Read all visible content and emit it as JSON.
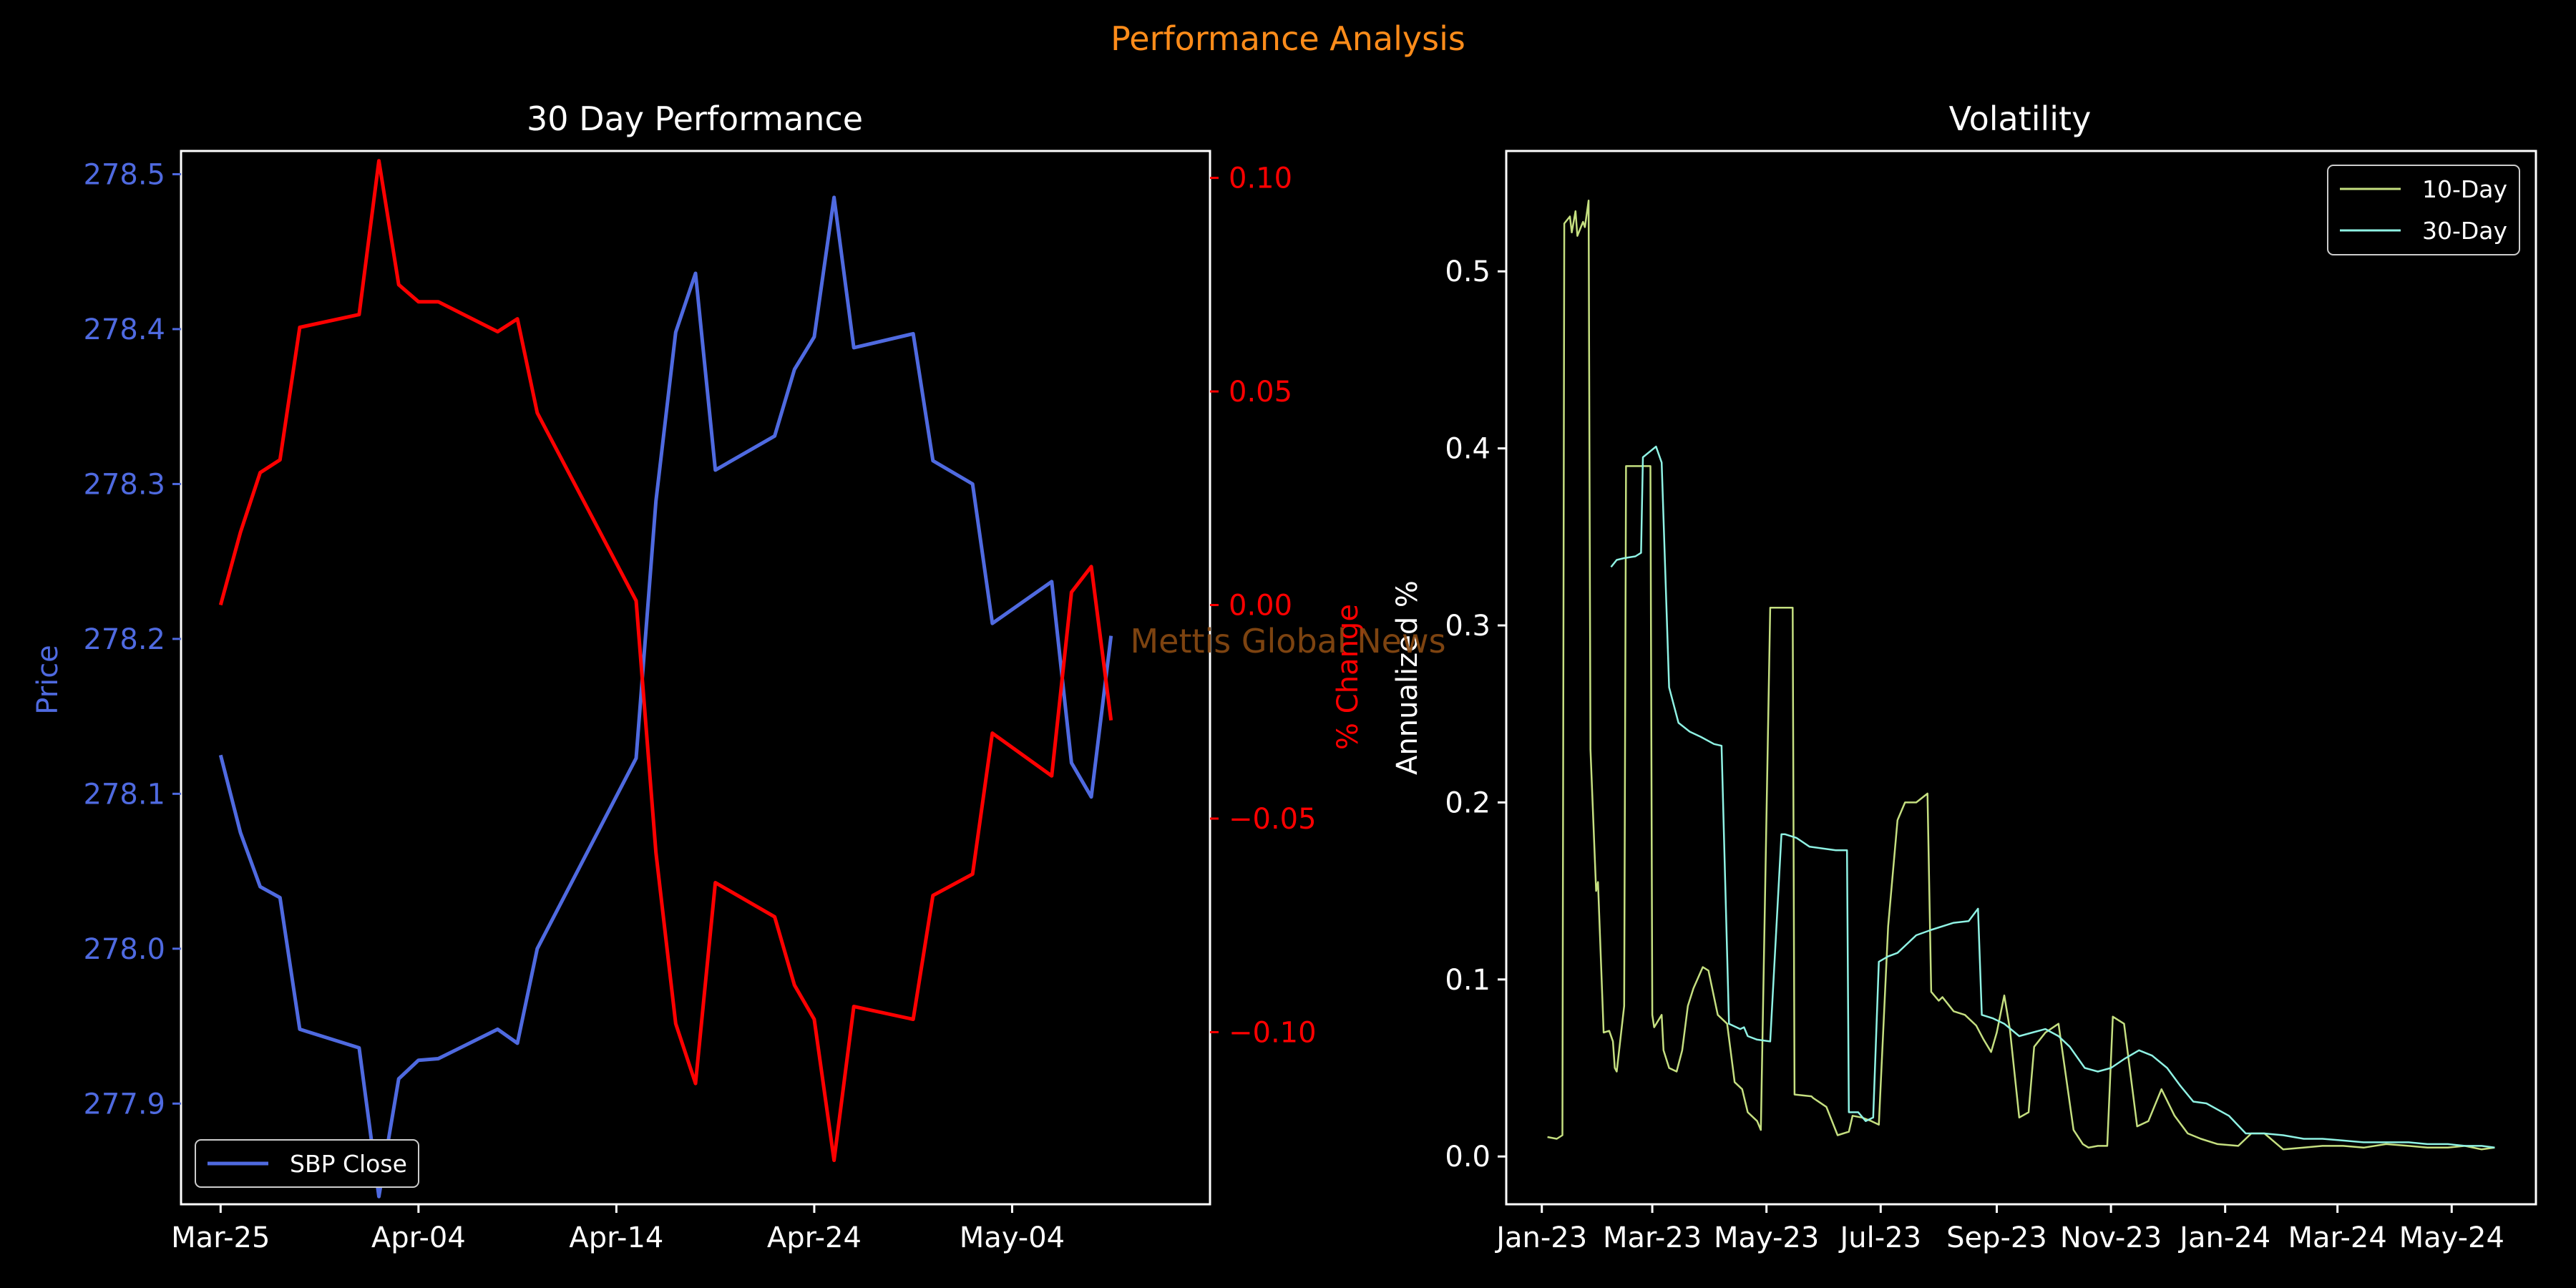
{
  "figure": {
    "title": "Performance Analysis",
    "title_color": "#ff8c1a",
    "watermark": "Mettis Global News",
    "watermark_color": "#8b4a12"
  },
  "colors": {
    "background": "#000000",
    "axis": "#ffffff",
    "price": "#4f6ae0",
    "pct": "#ff0000",
    "vol10": "#c5df80",
    "vol30": "#8ff2e4"
  },
  "chart_data": [
    {
      "type": "line",
      "title": "30 Day Performance",
      "ylabel": "Price",
      "y2label": "% Change",
      "ylim": [
        277.835,
        278.515
      ],
      "y2lim": [
        -0.1403,
        0.1063
      ],
      "yticks": [
        277.9,
        278.0,
        278.1,
        278.2,
        278.3,
        278.4,
        278.5
      ],
      "ytick_labels": [
        "277.9",
        "278.0",
        "278.1",
        "278.2",
        "278.3",
        "278.4",
        "278.5"
      ],
      "y2ticks": [
        -0.1,
        -0.05,
        0.0,
        0.05,
        0.1
      ],
      "y2tick_labels": [
        "−0.10",
        "−0.05",
        "0.00",
        "0.05",
        "0.10"
      ],
      "x_range": [
        "2024-03-23",
        "2024-05-14"
      ],
      "xticks": [
        "2024-03-25",
        "2024-04-04",
        "2024-04-14",
        "2024-04-24",
        "2024-05-04"
      ],
      "xtick_labels": [
        "Mar-25",
        "Apr-04",
        "Apr-14",
        "Apr-24",
        "May-04"
      ],
      "legend": {
        "position": "lower-left",
        "entries": [
          "SBP Close"
        ]
      },
      "series": [
        {
          "name": "SBP Close",
          "axis": "left",
          "x": [
            "2024-03-25",
            "2024-03-26",
            "2024-03-27",
            "2024-03-28",
            "2024-03-29",
            "2024-04-01",
            "2024-04-02",
            "2024-04-03",
            "2024-04-04",
            "2024-04-05",
            "2024-04-08",
            "2024-04-09",
            "2024-04-10",
            "2024-04-15",
            "2024-04-16",
            "2024-04-17",
            "2024-04-18",
            "2024-04-19",
            "2024-04-22",
            "2024-04-23",
            "2024-04-24",
            "2024-04-25",
            "2024-04-26",
            "2024-04-29",
            "2024-04-30",
            "2024-05-02",
            "2024-05-03",
            "2024-05-06",
            "2024-05-07",
            "2024-05-08",
            "2024-05-09"
          ],
          "y": [
            278.125,
            278.075,
            278.04,
            278.033,
            277.948,
            277.936,
            277.84,
            277.916,
            277.928,
            277.929,
            277.948,
            277.939,
            278.0,
            278.123,
            278.289,
            278.398,
            278.436,
            278.309,
            278.331,
            278.374,
            278.395,
            278.485,
            278.388,
            278.397,
            278.315,
            278.3,
            278.21,
            278.237,
            278.12,
            278.098,
            278.202
          ]
        },
        {
          "name": "% Change",
          "axis": "right",
          "x": [
            "2024-03-25",
            "2024-03-26",
            "2024-03-27",
            "2024-03-28",
            "2024-03-29",
            "2024-04-01",
            "2024-04-02",
            "2024-04-03",
            "2024-04-04",
            "2024-04-05",
            "2024-04-08",
            "2024-04-09",
            "2024-04-10",
            "2024-04-15",
            "2024-04-16",
            "2024-04-17",
            "2024-04-18",
            "2024-04-19",
            "2024-04-22",
            "2024-04-23",
            "2024-04-24",
            "2024-04-25",
            "2024-04-26",
            "2024-04-29",
            "2024-04-30",
            "2024-05-02",
            "2024-05-03",
            "2024-05-06",
            "2024-05-07",
            "2024-05-08",
            "2024-05-09"
          ],
          "y": [
            0.0,
            0.017,
            0.031,
            0.034,
            0.065,
            0.068,
            0.104,
            0.075,
            0.071,
            0.071,
            0.064,
            0.067,
            0.045,
            0.001,
            -0.058,
            -0.098,
            -0.112,
            -0.065,
            -0.073,
            -0.089,
            -0.097,
            -0.13,
            -0.094,
            -0.097,
            -0.068,
            -0.063,
            -0.03,
            -0.04,
            0.003,
            0.009,
            -0.027
          ]
        }
      ]
    },
    {
      "type": "line",
      "title": "Volatility",
      "ylabel": "Annualized %",
      "ylim": [
        -0.027,
        0.568
      ],
      "yticks": [
        0.0,
        0.1,
        0.2,
        0.3,
        0.4,
        0.5
      ],
      "ytick_labels": [
        "0.0",
        "0.1",
        "0.2",
        "0.3",
        "0.4",
        "0.5"
      ],
      "x_range": [
        "2022-12-13",
        "2024-06-15"
      ],
      "xticks": [
        "2023-01-01",
        "2023-03-01",
        "2023-05-01",
        "2023-07-01",
        "2023-09-01",
        "2023-11-01",
        "2024-01-01",
        "2024-03-01",
        "2024-05-01"
      ],
      "xtick_labels": [
        "Jan-23",
        "Mar-23",
        "May-23",
        "Jul-23",
        "Sep-23",
        "Nov-23",
        "Jan-24",
        "Mar-24",
        "May-24"
      ],
      "legend": {
        "position": "upper-right",
        "entries": [
          "10-Day",
          "30-Day"
        ]
      },
      "series": [
        {
          "name": "10-Day",
          "x": [
            "2023-01-04",
            "2023-01-09",
            "2023-01-12",
            "2023-01-13",
            "2023-01-16",
            "2023-01-17",
            "2023-01-19",
            "2023-01-20",
            "2023-01-23",
            "2023-01-24",
            "2023-01-26",
            "2023-01-27",
            "2023-01-30",
            "2023-01-31",
            "2023-02-03",
            "2023-02-06",
            "2023-02-08",
            "2023-02-09",
            "2023-02-10",
            "2023-02-14",
            "2023-02-15",
            "2023-02-20",
            "2023-02-23",
            "2023-02-28",
            "2023-03-01",
            "2023-03-02",
            "2023-03-06",
            "2023-03-07",
            "2023-03-10",
            "2023-03-14",
            "2023-03-17",
            "2023-03-20",
            "2023-03-23",
            "2023-03-28",
            "2023-03-31",
            "2023-04-05",
            "2023-04-10",
            "2023-04-14",
            "2023-04-18",
            "2023-04-21",
            "2023-04-26",
            "2023-04-28",
            "2023-05-03",
            "2023-05-08",
            "2023-05-11",
            "2023-05-15",
            "2023-05-16",
            "2023-05-25",
            "2023-05-26",
            "2023-06-02",
            "2023-06-08",
            "2023-06-14",
            "2023-06-16",
            "2023-06-21",
            "2023-06-26",
            "2023-06-30",
            "2023-07-05",
            "2023-07-10",
            "2023-07-14",
            "2023-07-20",
            "2023-07-26",
            "2023-07-28",
            "2023-08-01",
            "2023-08-03",
            "2023-08-09",
            "2023-08-15",
            "2023-08-21",
            "2023-08-25",
            "2023-08-29",
            "2023-09-01",
            "2023-09-05",
            "2023-09-08",
            "2023-09-13",
            "2023-09-18",
            "2023-09-21",
            "2023-09-27",
            "2023-10-04",
            "2023-10-12",
            "2023-10-17",
            "2023-10-20",
            "2023-10-25",
            "2023-10-30",
            "2023-11-02",
            "2023-11-08",
            "2023-11-15",
            "2023-11-21",
            "2023-11-28",
            "2023-12-05",
            "2023-12-12",
            "2023-12-19",
            "2023-12-28",
            "2024-01-08",
            "2024-01-15",
            "2024-01-22",
            "2024-02-01",
            "2024-02-12",
            "2024-02-22",
            "2024-03-04",
            "2024-03-15",
            "2024-03-27",
            "2024-04-08",
            "2024-04-18",
            "2024-04-29",
            "2024-05-08",
            "2024-05-17",
            "2024-05-24"
          ],
          "y": [
            0.011,
            0.01,
            0.012,
            0.527,
            0.531,
            0.522,
            0.534,
            0.52,
            0.528,
            0.525,
            0.54,
            0.23,
            0.15,
            0.155,
            0.07,
            0.071,
            0.065,
            0.05,
            0.048,
            0.085,
            0.39,
            0.39,
            0.39,
            0.39,
            0.08,
            0.073,
            0.08,
            0.06,
            0.05,
            0.048,
            0.06,
            0.085,
            0.095,
            0.107,
            0.105,
            0.08,
            0.075,
            0.042,
            0.038,
            0.025,
            0.02,
            0.015,
            0.31,
            0.31,
            0.31,
            0.31,
            0.035,
            0.034,
            0.033,
            0.028,
            0.012,
            0.014,
            0.023,
            0.022,
            0.02,
            0.018,
            0.13,
            0.19,
            0.2,
            0.2,
            0.205,
            0.093,
            0.088,
            0.09,
            0.082,
            0.08,
            0.074,
            0.066,
            0.059,
            0.07,
            0.091,
            0.072,
            0.022,
            0.025,
            0.062,
            0.07,
            0.075,
            0.015,
            0.007,
            0.005,
            0.006,
            0.006,
            0.079,
            0.075,
            0.017,
            0.02,
            0.038,
            0.023,
            0.013,
            0.01,
            0.007,
            0.006,
            0.013,
            0.013,
            0.004,
            0.005,
            0.006,
            0.006,
            0.005,
            0.007,
            0.006,
            0.005,
            0.005,
            0.006,
            0.004,
            0.005
          ]
        },
        {
          "name": "30-Day",
          "x": [
            "2023-02-07",
            "2023-02-10",
            "2023-02-14",
            "2023-02-20",
            "2023-02-23",
            "2023-02-24",
            "2023-03-03",
            "2023-03-06",
            "2023-03-10",
            "2023-03-15",
            "2023-03-21",
            "2023-03-27",
            "2023-04-03",
            "2023-04-07",
            "2023-04-11",
            "2023-04-17",
            "2023-04-19",
            "2023-04-21",
            "2023-04-26",
            "2023-05-03",
            "2023-05-09",
            "2023-05-11",
            "2023-05-17",
            "2023-05-24",
            "2023-05-31",
            "2023-06-07",
            "2023-06-13",
            "2023-06-14",
            "2023-06-19",
            "2023-06-23",
            "2023-06-27",
            "2023-06-30",
            "2023-07-05",
            "2023-07-10",
            "2023-07-20",
            "2023-07-28",
            "2023-08-09",
            "2023-08-17",
            "2023-08-22",
            "2023-08-24",
            "2023-08-30",
            "2023-09-05",
            "2023-09-13",
            "2023-09-20",
            "2023-09-27",
            "2023-10-04",
            "2023-10-10",
            "2023-10-18",
            "2023-10-25",
            "2023-11-01",
            "2023-11-08",
            "2023-11-16",
            "2023-11-23",
            "2023-12-01",
            "2023-12-08",
            "2023-12-15",
            "2023-12-22",
            "2024-01-03",
            "2024-01-12",
            "2024-01-22",
            "2024-02-01",
            "2024-02-12",
            "2024-02-22",
            "2024-03-04",
            "2024-03-15",
            "2024-03-27",
            "2024-04-08",
            "2024-04-18",
            "2024-04-29",
            "2024-05-08",
            "2024-05-17",
            "2024-05-24"
          ],
          "y": [
            0.333,
            0.337,
            0.338,
            0.339,
            0.341,
            0.395,
            0.401,
            0.392,
            0.265,
            0.245,
            0.24,
            0.237,
            0.233,
            0.232,
            0.075,
            0.072,
            0.073,
            0.068,
            0.066,
            0.065,
            0.182,
            0.182,
            0.18,
            0.175,
            0.174,
            0.173,
            0.173,
            0.025,
            0.025,
            0.02,
            0.022,
            0.11,
            0.113,
            0.115,
            0.125,
            0.128,
            0.132,
            0.133,
            0.14,
            0.08,
            0.078,
            0.075,
            0.068,
            0.07,
            0.072,
            0.068,
            0.062,
            0.05,
            0.048,
            0.05,
            0.055,
            0.06,
            0.057,
            0.05,
            0.04,
            0.031,
            0.03,
            0.023,
            0.013,
            0.013,
            0.012,
            0.01,
            0.01,
            0.009,
            0.008,
            0.008,
            0.008,
            0.007,
            0.007,
            0.006,
            0.006,
            0.005
          ]
        }
      ]
    }
  ]
}
